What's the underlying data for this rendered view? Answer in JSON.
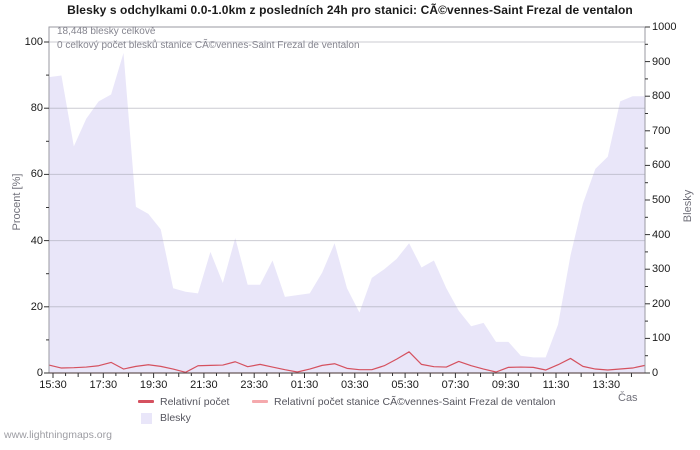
{
  "title": "Blesky s odchylkami 0.0-1.0km z posledních 24h pro stanici: CÃ©vennes-Saint Frezal de ventalon",
  "annotations": {
    "total_line": "18,448 blesky celkově",
    "station_line": "0 celkový počet blesků stanice CÃ©vennes-Saint Frezal de ventalon"
  },
  "footer": {
    "watermark": "www.lightningmaps.org"
  },
  "legend": {
    "items": [
      {
        "label": "Relativní počet",
        "swatch": "line",
        "color": "#d5515f"
      },
      {
        "label": "Relativní počet stanice CÃ©vennes-Saint Frezal de ventalon",
        "swatch": "line",
        "color": "#f5a9ad"
      },
      {
        "label": "Blesky",
        "swatch": "area",
        "color": "#e9e6f9"
      }
    ]
  },
  "chart_data": {
    "type": "area",
    "title": "Blesky s odchylkami 0.0-1.0km z posledních 24h pro stanici: CÃ©vennes-Saint Frezal de ventalon",
    "x_axis": {
      "label": "Čas",
      "tick_labels": [
        "15:30",
        "17:30",
        "19:30",
        "21:30",
        "23:30",
        "01:30",
        "03:30",
        "05:30",
        "07:30",
        "09:30",
        "11:30",
        "13:30"
      ],
      "start": "15:30",
      "step_minutes_per_point": 30,
      "span_hours": 24
    },
    "y_left": {
      "label": "Procent  [%]",
      "ticks": [
        0,
        20,
        40,
        60,
        80,
        100
      ],
      "minor_step": 10,
      "unit": "%"
    },
    "y_right": {
      "label": "Blesky",
      "ticks": [
        0,
        100,
        200,
        300,
        400,
        500,
        600,
        700,
        800,
        900,
        1000
      ],
      "minor_step": 50,
      "max": 1000
    },
    "grid": "horizontal-at-left-ticks",
    "legend_position": "bottom",
    "series": [
      {
        "name": "Blesky",
        "type": "area",
        "axis": "right",
        "color": "#e9e6f9",
        "values": [
          855,
          860,
          655,
          735,
          785,
          805,
          925,
          480,
          460,
          415,
          245,
          235,
          230,
          350,
          260,
          390,
          255,
          255,
          325,
          220,
          225,
          230,
          290,
          375,
          245,
          175,
          275,
          300,
          330,
          375,
          305,
          325,
          245,
          180,
          135,
          145,
          90,
          90,
          50,
          45,
          45,
          140,
          340,
          490,
          590,
          625,
          785,
          800,
          800
        ]
      },
      {
        "name": "Relativní počet",
        "type": "line",
        "axis": "left",
        "color": "#d5515f",
        "values": [
          2.4,
          1.5,
          1.6,
          1.8,
          2.2,
          3.2,
          1.2,
          2.0,
          2.5,
          2.0,
          1.2,
          0.2,
          2.2,
          2.3,
          2.4,
          3.4,
          1.9,
          2.6,
          1.8,
          1.0,
          0.3,
          1.2,
          2.3,
          2.8,
          1.4,
          1.0,
          1.0,
          2.2,
          4.2,
          6.4,
          2.6,
          1.9,
          1.8,
          3.5,
          2.2,
          1.2,
          0.3,
          1.7,
          1.8,
          1.7,
          0.9,
          2.5,
          4.4,
          2.0,
          1.2,
          0.9,
          1.2,
          1.5,
          2.3
        ]
      },
      {
        "name": "Relativní počet stanice CÃ©vennes-Saint Frezal de ventalon",
        "type": "line",
        "axis": "left",
        "color": "#f5a9ad",
        "values": [
          0,
          0,
          0,
          0,
          0,
          0,
          0,
          0,
          0,
          0,
          0,
          0,
          0,
          0,
          0,
          0,
          0,
          0,
          0,
          0,
          0,
          0,
          0,
          0,
          0,
          0,
          0,
          0,
          0,
          0,
          0,
          0,
          0,
          0,
          0,
          0,
          0,
          0,
          0,
          0,
          0,
          0,
          0,
          0,
          0,
          0,
          0,
          0,
          0
        ]
      }
    ],
    "totals": {
      "all_stations": 18448,
      "this_station": 0
    }
  },
  "colors": {
    "area_fill": "#e9e6f9",
    "main_line": "#d5515f",
    "station_line": "#f5a9ad",
    "grid_line": "#a9a9b4",
    "plot_border": "#9a9aa2",
    "axis_line": "#444444",
    "tick": "#333333"
  }
}
